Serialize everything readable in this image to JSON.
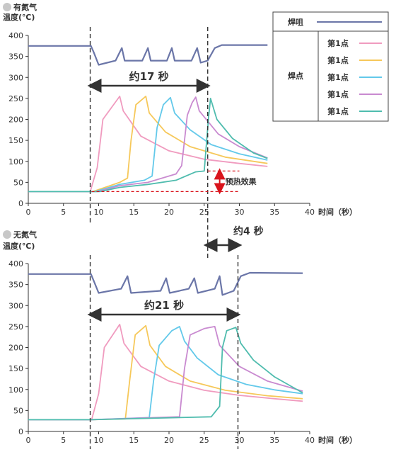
{
  "colors": {
    "tip": "#6b76a8",
    "p1": "#f09bbf",
    "p2": "#f6c85a",
    "p3": "#63c9ea",
    "p4": "#c98ad0",
    "p5": "#4fbcae",
    "annotation": "#333333",
    "preheat": "#d9141c"
  },
  "legend": {
    "tip_label": "焊咀",
    "points_group_label": "焊点",
    "point_labels": [
      "第1点",
      "第1点",
      "第1点",
      "第1点",
      "第1点"
    ]
  },
  "chart_data": [
    {
      "type": "line",
      "title": "有氮气",
      "ylabel": "温度(℃)",
      "xlabel": "时间（秒）",
      "xlim": [
        0,
        40
      ],
      "ylim": [
        0,
        400
      ],
      "xticks": [
        0,
        5,
        10,
        15,
        20,
        25,
        30,
        35,
        40
      ],
      "yticks": [
        0,
        50,
        100,
        150,
        200,
        250,
        300,
        350,
        400
      ],
      "grid": false,
      "legend_position": "top-right",
      "vlines": [
        8.8,
        25.5
      ],
      "interval_label": "约17 秒",
      "preheat_label": "预热效果",
      "preheat_range": [
        28,
        77
      ],
      "series": [
        {
          "key": "tip",
          "points": [
            [
              0,
              375
            ],
            [
              8.9,
              375
            ],
            [
              9.3,
              360
            ],
            [
              10,
              330
            ],
            [
              12.4,
              340
            ],
            [
              13.3,
              370
            ],
            [
              13.7,
              340
            ],
            [
              16.2,
              340
            ],
            [
              17,
              370
            ],
            [
              17.4,
              340
            ],
            [
              19.7,
              340
            ],
            [
              20.4,
              370
            ],
            [
              20.8,
              340
            ],
            [
              23.2,
              340
            ],
            [
              24,
              370
            ],
            [
              24.5,
              335
            ],
            [
              25.5,
              340
            ],
            [
              26.5,
              370
            ],
            [
              27.5,
              377
            ],
            [
              34,
              377
            ]
          ]
        },
        {
          "key": "p1",
          "points": [
            [
              0,
              28
            ],
            [
              8.8,
              28
            ],
            [
              9.8,
              85
            ],
            [
              10.6,
              200
            ],
            [
              13,
              255
            ],
            [
              13.5,
              220
            ],
            [
              16,
              160
            ],
            [
              20,
              125
            ],
            [
              25,
              105
            ],
            [
              30,
              95
            ],
            [
              34,
              88
            ]
          ]
        },
        {
          "key": "p2",
          "points": [
            [
              0,
              28
            ],
            [
              9.2,
              28
            ],
            [
              13,
              50
            ],
            [
              14.1,
              60
            ],
            [
              14.6,
              150
            ],
            [
              15.3,
              235
            ],
            [
              16.7,
              255
            ],
            [
              17.2,
              215
            ],
            [
              19.5,
              170
            ],
            [
              23,
              135
            ],
            [
              28,
              110
            ],
            [
              34,
              95
            ]
          ]
        },
        {
          "key": "p3",
          "points": [
            [
              0,
              28
            ],
            [
              9.5,
              28
            ],
            [
              13,
              45
            ],
            [
              16.5,
              55
            ],
            [
              17.6,
              65
            ],
            [
              18.3,
              180
            ],
            [
              19.2,
              235
            ],
            [
              20.2,
              252
            ],
            [
              20.8,
              215
            ],
            [
              23,
              175
            ],
            [
              26,
              140
            ],
            [
              30,
              118
            ],
            [
              34,
              103
            ]
          ]
        },
        {
          "key": "p4",
          "points": [
            [
              0,
              28
            ],
            [
              9.9,
              28
            ],
            [
              13,
              42
            ],
            [
              17,
              50
            ],
            [
              21,
              70
            ],
            [
              21.8,
              90
            ],
            [
              22.6,
              210
            ],
            [
              23.3,
              240
            ],
            [
              23.8,
              253
            ],
            [
              24.3,
              220
            ],
            [
              27,
              165
            ],
            [
              30,
              135
            ],
            [
              34,
              108
            ]
          ]
        },
        {
          "key": "p5",
          "points": [
            [
              0,
              28
            ],
            [
              10.2,
              28
            ],
            [
              13,
              38
            ],
            [
              17,
              45
            ],
            [
              21,
              55
            ],
            [
              23.8,
              75
            ],
            [
              25,
              77
            ],
            [
              25.6,
              200
            ],
            [
              25.9,
              250
            ],
            [
              26.8,
              200
            ],
            [
              29,
              155
            ],
            [
              32,
              120
            ],
            [
              34,
              107
            ]
          ]
        }
      ]
    },
    {
      "type": "line",
      "title": "无氮气",
      "ylabel": "温度(℃)",
      "xlabel": "时间（秒）",
      "xlim": [
        0,
        40
      ],
      "ylim": [
        0,
        400
      ],
      "xticks": [
        0,
        5,
        10,
        15,
        20,
        25,
        30,
        35,
        40
      ],
      "yticks": [
        0,
        50,
        100,
        150,
        200,
        250,
        300,
        350,
        400
      ],
      "grid": false,
      "vlines": [
        8.8,
        29.8
      ],
      "interval_label": "约21 秒",
      "series": [
        {
          "key": "tip",
          "points": [
            [
              0,
              375
            ],
            [
              8.9,
              375
            ],
            [
              9.4,
              355
            ],
            [
              10,
              330
            ],
            [
              13.2,
              340
            ],
            [
              14.1,
              370
            ],
            [
              14.6,
              330
            ],
            [
              18.8,
              335
            ],
            [
              19.6,
              365
            ],
            [
              20.1,
              330
            ],
            [
              22.8,
              340
            ],
            [
              23.6,
              365
            ],
            [
              24.1,
              330
            ],
            [
              26.5,
              340
            ],
            [
              27.2,
              370
            ],
            [
              27.6,
              325
            ],
            [
              29.2,
              335
            ],
            [
              30.2,
              370
            ],
            [
              31.5,
              378
            ],
            [
              39,
              377
            ]
          ]
        },
        {
          "key": "p1",
          "points": [
            [
              0,
              28
            ],
            [
              9,
              28
            ],
            [
              10,
              90
            ],
            [
              10.8,
              200
            ],
            [
              13,
              255
            ],
            [
              13.6,
              210
            ],
            [
              16,
              155
            ],
            [
              20,
              120
            ],
            [
              25,
              98
            ],
            [
              30,
              86
            ],
            [
              35,
              78
            ],
            [
              39,
              72
            ]
          ]
        },
        {
          "key": "p2",
          "points": [
            [
              0,
              28
            ],
            [
              9,
              28
            ],
            [
              13.8,
              30
            ],
            [
              14.4,
              120
            ],
            [
              15.2,
              230
            ],
            [
              16.7,
              252
            ],
            [
              17.3,
              205
            ],
            [
              19.5,
              155
            ],
            [
              23,
              120
            ],
            [
              28,
              98
            ],
            [
              34,
              85
            ],
            [
              39,
              78
            ]
          ]
        },
        {
          "key": "p3",
          "points": [
            [
              0,
              28
            ],
            [
              9,
              28
            ],
            [
              17.2,
              33
            ],
            [
              17.8,
              120
            ],
            [
              18.6,
              205
            ],
            [
              20.4,
              240
            ],
            [
              21.5,
              250
            ],
            [
              22.2,
              215
            ],
            [
              24,
              175
            ],
            [
              27,
              135
            ],
            [
              31,
              112
            ],
            [
              35,
              99
            ],
            [
              39,
              90
            ]
          ]
        },
        {
          "key": "p4",
          "points": [
            [
              0,
              28
            ],
            [
              9,
              28
            ],
            [
              21.5,
              35
            ],
            [
              22.2,
              150
            ],
            [
              23,
              230
            ],
            [
              25,
              245
            ],
            [
              26.5,
              250
            ],
            [
              27.2,
              205
            ],
            [
              30,
              155
            ],
            [
              34,
              120
            ],
            [
              39,
              96
            ]
          ]
        },
        {
          "key": "p5",
          "points": [
            [
              0,
              28
            ],
            [
              9,
              28
            ],
            [
              26,
              35
            ],
            [
              27.2,
              60
            ],
            [
              27.6,
              200
            ],
            [
              28.2,
              240
            ],
            [
              29.5,
              248
            ],
            [
              30.2,
              210
            ],
            [
              32,
              170
            ],
            [
              35,
              130
            ],
            [
              39,
              92
            ]
          ]
        }
      ]
    }
  ],
  "between_charts_label": "约4 秒"
}
